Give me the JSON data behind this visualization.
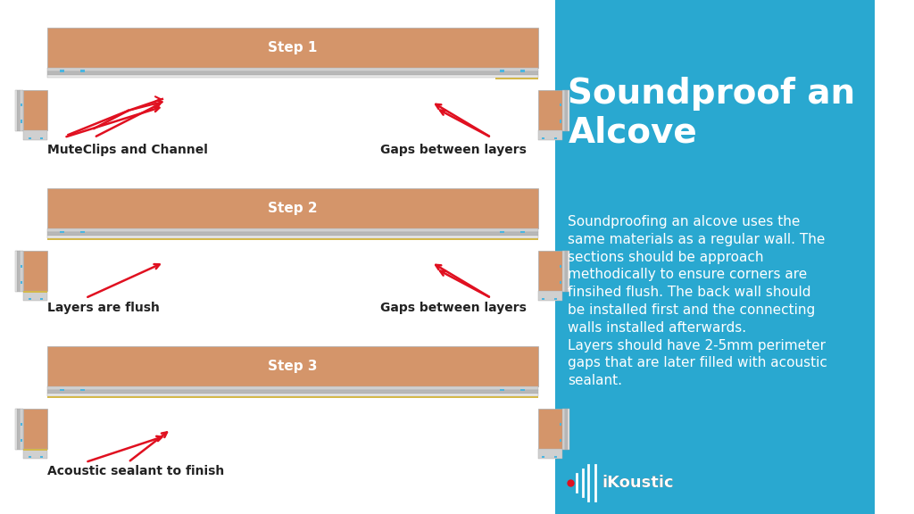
{
  "bg_left": "#ffffff",
  "bg_right": "#29a8d0",
  "title": "Soundproof an\nAlcove",
  "title_color": "#ffffff",
  "title_fontsize": 28,
  "body_text": "Soundproofing an alcove uses the\nsame materials as a regular wall. The\nsections should be approach\nmethodically to ensure corners are\nfinsihed flush. The back wall should\nbe installed first and the connecting\nwalls installed afterwards.\nLayers should have 2-5mm perimeter\ngaps that are later filled with acoustic\nsealant.",
  "body_color": "#ffffff",
  "body_fontsize": 11,
  "logo_text": "iKoustic",
  "plasterboard_color": "#d4956a",
  "channel_color": "#c8c8c8",
  "channel_border": "#aaaaaa",
  "clip_color": "#4ab5e0",
  "tecsound_color": "#d4b84a",
  "gap_color": "#ffffff",
  "arrow_color": "#e01020",
  "label_color": "#222222",
  "label_fontsize": 10,
  "step_label_color": "#ffffff",
  "step_label_fontsize": 11,
  "steps": [
    "Step 1",
    "Step 2",
    "Step 3"
  ],
  "step1_labels": [
    "MuteClips and Channel",
    "Gaps between layers"
  ],
  "step2_labels": [
    "Layers are flush",
    "Gaps between layers"
  ],
  "step3_labels": [
    "Acoustic sealant to finish"
  ]
}
